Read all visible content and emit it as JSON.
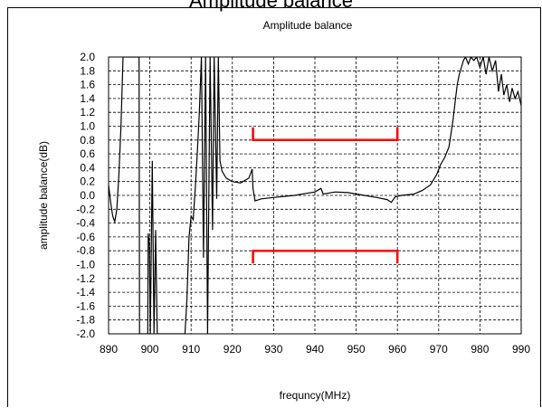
{
  "outer_title": "Amplitude balance",
  "chart_data": {
    "type": "line",
    "title": "Amplitude balance",
    "xlabel": "frequncy(MHz)",
    "ylabel": "amplitude balance(dB)",
    "xlim": [
      890,
      990
    ],
    "ylim": [
      -2.0,
      2.0
    ],
    "x_ticks": [
      "890",
      "900",
      "910",
      "920",
      "930",
      "940",
      "950",
      "960",
      "970",
      "980",
      "990"
    ],
    "y_ticks": [
      "2.0",
      "1.8",
      "1.6",
      "1.4",
      "1.2",
      "1.0",
      "0.8",
      "0.6",
      "0.4",
      "0.2",
      "0.0",
      "-0.2",
      "-0.4",
      "-0.6",
      "-0.8",
      "-1.0",
      "-1.2",
      "-1.4",
      "-1.6",
      "-1.8",
      "-2.0"
    ],
    "grid": true,
    "series": [
      {
        "color": "#000000",
        "points": [
          [
            890.0,
            0.15
          ],
          [
            890.5,
            -0.1
          ],
          [
            891.0,
            -0.3
          ],
          [
            891.5,
            -0.38
          ],
          [
            892.0,
            -0.2
          ],
          [
            892.5,
            0.3
          ],
          [
            893.0,
            1.0
          ],
          [
            893.5,
            2.0
          ],
          [
            897.4,
            2.0
          ],
          [
            897.5,
            -2.0
          ],
          [
            899.5,
            -2.0
          ],
          [
            899.6,
            -0.55
          ],
          [
            899.9,
            -0.7
          ],
          [
            900.1,
            -2.0
          ],
          [
            900.6,
            0.5
          ],
          [
            901.0,
            -2.0
          ],
          [
            901.4,
            -0.5
          ],
          [
            901.8,
            -2.0
          ],
          [
            902.4,
            -2.0
          ],
          [
            908.5,
            -2.0
          ],
          [
            909.0,
            -1.5
          ],
          [
            909.5,
            -0.6
          ],
          [
            910.0,
            -0.3
          ],
          [
            910.5,
            -0.35
          ],
          [
            911.0,
            0.1
          ],
          [
            911.5,
            0.6
          ],
          [
            912.0,
            1.2
          ],
          [
            912.5,
            2.0
          ],
          [
            913.0,
            -0.9
          ],
          [
            913.5,
            2.0
          ],
          [
            914.0,
            -2.0
          ],
          [
            914.6,
            2.0
          ],
          [
            915.2,
            -0.5
          ],
          [
            915.6,
            2.0
          ],
          [
            916.2,
            -0.05
          ],
          [
            916.6,
            2.0
          ],
          [
            917.0,
            0.5
          ],
          [
            917.5,
            0.35
          ],
          [
            918.5,
            0.25
          ],
          [
            920.0,
            0.2
          ],
          [
            922.0,
            0.18
          ],
          [
            924.0,
            0.25
          ],
          [
            924.8,
            0.38
          ],
          [
            925.0,
            0.1
          ],
          [
            925.5,
            -0.08
          ],
          [
            927.0,
            -0.05
          ],
          [
            930.0,
            -0.03
          ],
          [
            935.0,
            0.0
          ],
          [
            938.0,
            0.03
          ],
          [
            940.0,
            0.05
          ],
          [
            941.5,
            0.1
          ],
          [
            942.0,
            0.02
          ],
          [
            945.0,
            0.05
          ],
          [
            948.0,
            0.04
          ],
          [
            952.0,
            0.0
          ],
          [
            955.0,
            -0.03
          ],
          [
            957.5,
            -0.06
          ],
          [
            958.5,
            -0.1
          ],
          [
            959.5,
            -0.02
          ],
          [
            961.0,
            0.0
          ],
          [
            964.0,
            0.02
          ],
          [
            966.0,
            0.07
          ],
          [
            968.0,
            0.15
          ],
          [
            969.5,
            0.3
          ],
          [
            970.5,
            0.45
          ],
          [
            971.5,
            0.55
          ],
          [
            972.5,
            0.7
          ],
          [
            973.0,
            0.9
          ],
          [
            973.5,
            1.1
          ],
          [
            974.0,
            1.35
          ],
          [
            974.5,
            1.6
          ],
          [
            975.0,
            1.75
          ],
          [
            975.5,
            1.85
          ],
          [
            976.0,
            1.95
          ],
          [
            976.5,
            2.0
          ],
          [
            977.2,
            1.9
          ],
          [
            977.8,
            2.0
          ],
          [
            978.5,
            1.95
          ],
          [
            979.2,
            2.0
          ],
          [
            980.0,
            1.85
          ],
          [
            980.8,
            2.0
          ],
          [
            981.5,
            1.75
          ],
          [
            982.2,
            2.0
          ],
          [
            983.0,
            1.8
          ],
          [
            983.8,
            1.95
          ],
          [
            984.5,
            1.5
          ],
          [
            985.2,
            1.75
          ],
          [
            985.8,
            1.45
          ],
          [
            986.5,
            1.6
          ],
          [
            987.2,
            1.35
          ],
          [
            987.8,
            1.55
          ],
          [
            988.5,
            1.4
          ],
          [
            989.2,
            1.5
          ],
          [
            990.0,
            1.3
          ]
        ]
      }
    ],
    "spec_limits": [
      {
        "x": [
          925,
          960
        ],
        "y": 0.8,
        "color": "#ff0000"
      },
      {
        "x": [
          925,
          960
        ],
        "y": -0.8,
        "color": "#ff0000"
      }
    ]
  }
}
